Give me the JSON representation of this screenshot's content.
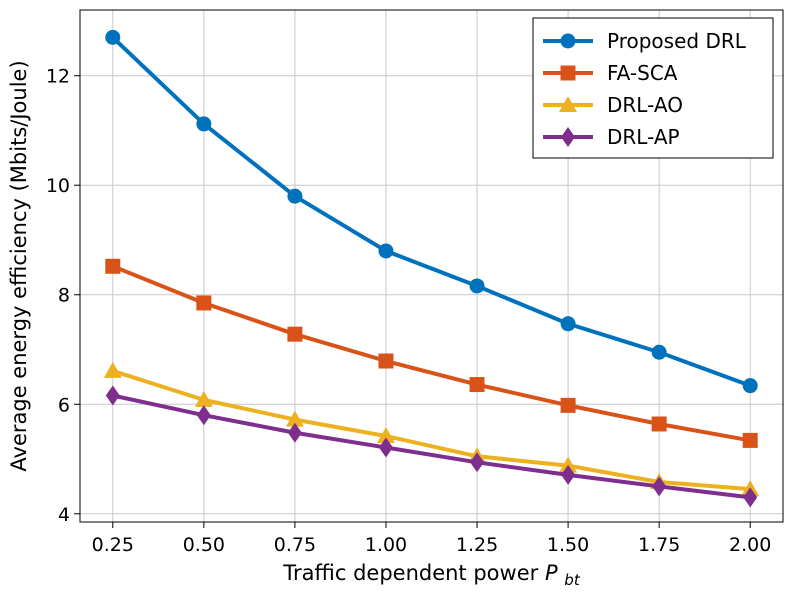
{
  "chart_data": {
    "type": "line",
    "title": "",
    "xlabel": "Traffic dependent power",
    "xlabel_symbol": "P",
    "xlabel_subscript": "bt",
    "ylabel": "Average energy efficiency (Mbits/Joule)",
    "x": [
      0.25,
      0.5,
      0.75,
      1.0,
      1.25,
      1.5,
      1.75,
      2.0
    ],
    "x_tick_labels": [
      "0.25",
      "0.50",
      "0.75",
      "1.00",
      "1.25",
      "1.50",
      "1.75",
      "2.00"
    ],
    "y_ticks": [
      4,
      6,
      8,
      10,
      12
    ],
    "y_tick_labels": [
      "4",
      "6",
      "8",
      "10",
      "12"
    ],
    "xlim": [
      0.16,
      2.09
    ],
    "ylim": [
      3.85,
      13.2
    ],
    "grid": true,
    "legend_position": "top-right",
    "series": [
      {
        "name": "Proposed DRL",
        "color": "#0072BD",
        "marker": "circle",
        "values": [
          12.7,
          11.12,
          9.8,
          8.8,
          8.16,
          7.47,
          6.95,
          6.34
        ]
      },
      {
        "name": "FA-SCA",
        "color": "#D95319",
        "marker": "square",
        "values": [
          8.52,
          7.85,
          7.28,
          6.79,
          6.36,
          5.98,
          5.64,
          5.34
        ]
      },
      {
        "name": "DRL-AO",
        "color": "#EDB120",
        "marker": "triangle",
        "values": [
          6.61,
          6.08,
          5.72,
          5.42,
          5.05,
          4.88,
          4.58,
          4.45
        ]
      },
      {
        "name": "DRL-AP",
        "color": "#7E2F8E",
        "marker": "diamond",
        "values": [
          6.16,
          5.8,
          5.48,
          5.21,
          4.94,
          4.71,
          4.5,
          4.3
        ]
      }
    ]
  }
}
